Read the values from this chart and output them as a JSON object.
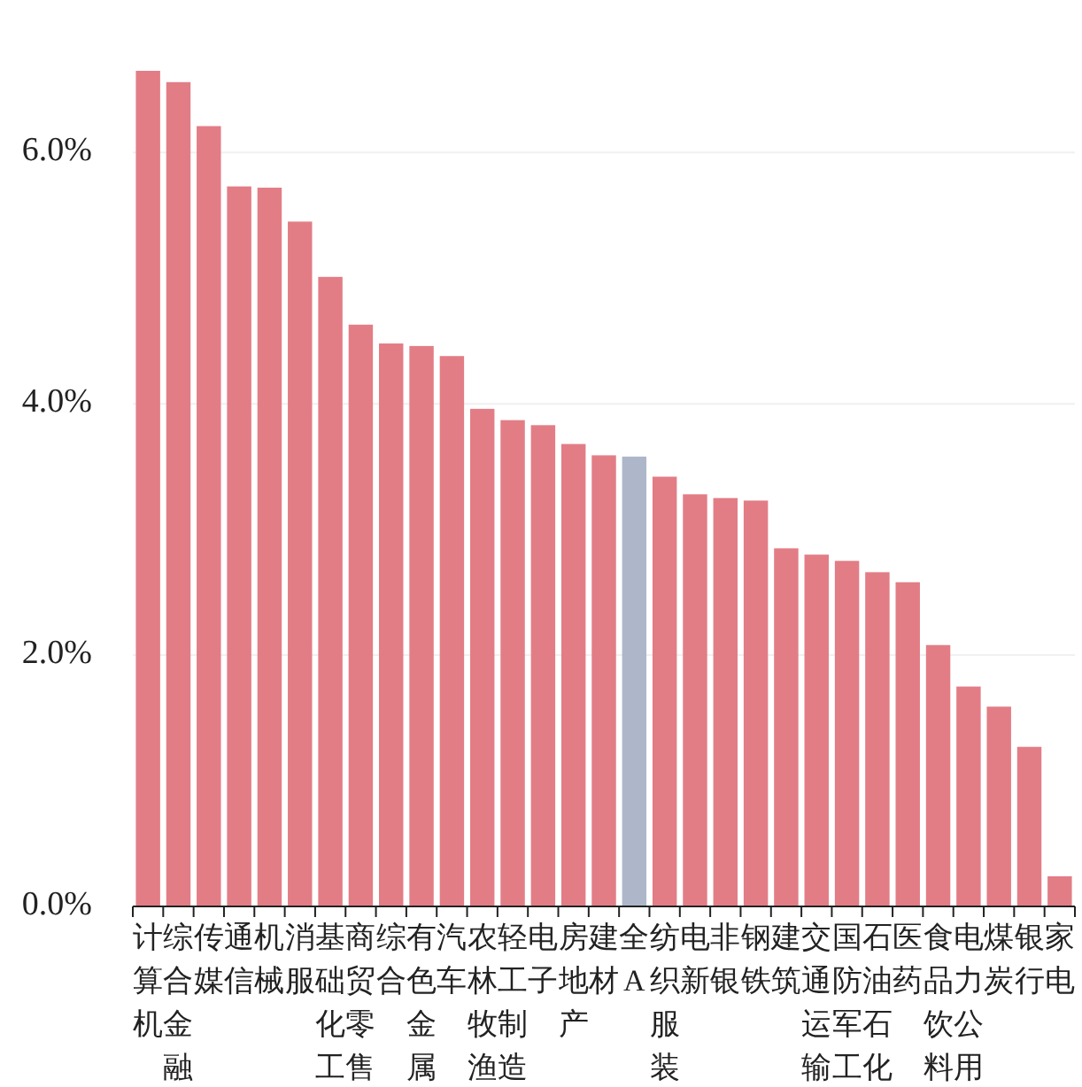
{
  "chart_data": {
    "type": "bar",
    "categories": [
      "计算机",
      "综合金融",
      "传媒",
      "通信",
      "机械",
      "消服",
      "基础化工",
      "商贸零售",
      "综合",
      "有色金属",
      "汽车",
      "农林牧渔",
      "轻工制造",
      "电子",
      "房地产",
      "建材",
      "全A",
      "纺织服装",
      "电新",
      "非银",
      "钢铁",
      "建筑",
      "交通运输",
      "国防军工",
      "石油石化",
      "医药",
      "食品饮料",
      "电力公用",
      "煤炭",
      "银行",
      "家电"
    ],
    "values": [
      6.65,
      6.56,
      6.21,
      5.73,
      5.72,
      5.45,
      5.01,
      4.63,
      4.48,
      4.46,
      4.38,
      3.96,
      3.87,
      3.83,
      3.68,
      3.59,
      3.58,
      3.42,
      3.28,
      3.25,
      3.23,
      2.85,
      2.8,
      2.75,
      2.66,
      2.58,
      2.08,
      1.75,
      1.59,
      1.27,
      0.24
    ],
    "colors": [
      "#e27d86",
      "#e27d86",
      "#e27d86",
      "#e27d86",
      "#e27d86",
      "#e27d86",
      "#e27d86",
      "#e27d86",
      "#e27d86",
      "#e27d86",
      "#e27d86",
      "#e27d86",
      "#e27d86",
      "#e27d86",
      "#e27d86",
      "#e27d86",
      "#adb7c9",
      "#e27d86",
      "#e27d86",
      "#e27d86",
      "#e27d86",
      "#e27d86",
      "#e27d86",
      "#e27d86",
      "#e27d86",
      "#e27d86",
      "#e27d86",
      "#e27d86",
      "#e27d86",
      "#e27d86",
      "#e27d86"
    ],
    "ylim": [
      0,
      6.65
    ],
    "yticks": [
      {
        "value": 0,
        "label": "0.0%"
      },
      {
        "value": 2,
        "label": "2.0%"
      },
      {
        "value": 4,
        "label": "4.0%"
      },
      {
        "value": 6,
        "label": "6.0%"
      }
    ],
    "grid": "y"
  }
}
